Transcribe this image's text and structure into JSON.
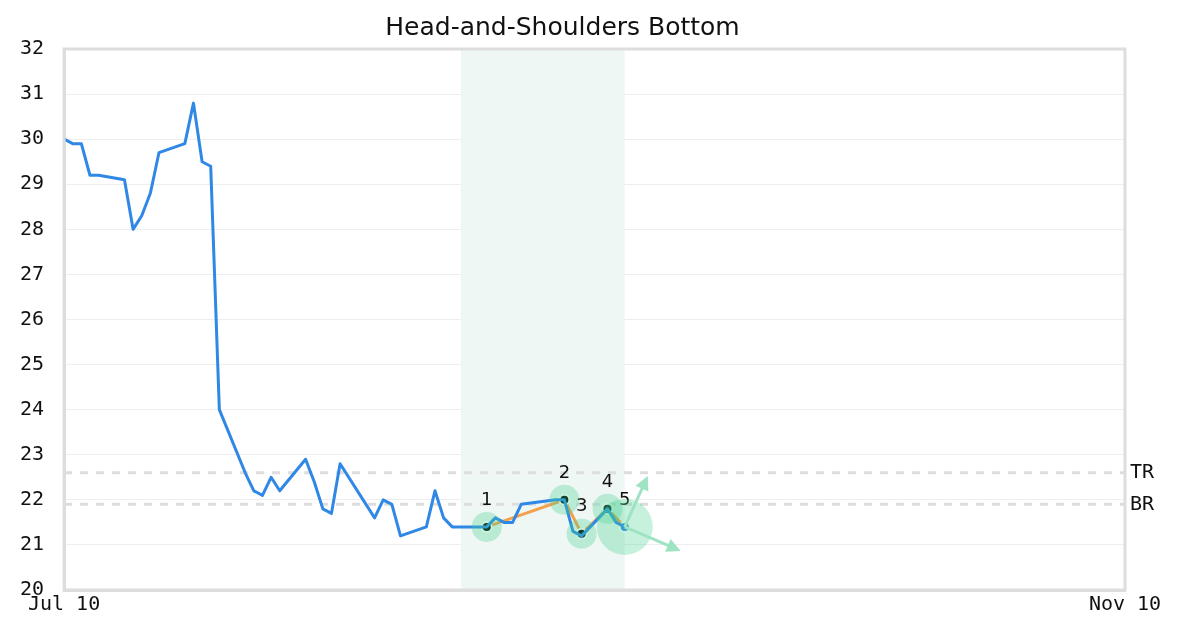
{
  "chart_data": {
    "type": "line",
    "title": "Head-and-Shoulders Bottom",
    "xlim": [
      "--07-10",
      "--11-10"
    ],
    "xticks": [
      {
        "value": "--07-10",
        "label": "Jul 10"
      },
      {
        "value": "--11-10",
        "label": "Nov 10"
      }
    ],
    "ylim": [
      20,
      32
    ],
    "yticks": [
      20,
      21,
      22,
      23,
      24,
      25,
      26,
      27,
      28,
      29,
      30,
      31,
      32
    ],
    "grid": "y",
    "legend": false,
    "series": [
      {
        "color": "#2f88e6",
        "marker": "none",
        "x": [
          "--07-10",
          "--07-11",
          "--07-12",
          "--07-13",
          "--07-14",
          "--07-17",
          "--07-18",
          "--07-19",
          "--07-20",
          "--07-21",
          "--07-24",
          "--07-25",
          "--07-26",
          "--07-27",
          "--07-28",
          "--07-31",
          "--08-01",
          "--08-02",
          "--08-03",
          "--08-04",
          "--08-07",
          "--08-08",
          "--08-09",
          "--08-10",
          "--08-11",
          "--08-14",
          "--08-15",
          "--08-16",
          "--08-17",
          "--08-18",
          "--08-21",
          "--08-22",
          "--08-23",
          "--08-24",
          "--08-25",
          "--08-28",
          "--08-29",
          "--08-30",
          "--08-31",
          "--09-01",
          "--09-05",
          "--09-06",
          "--09-07",
          "--09-08",
          "--09-11",
          "--09-12",
          "--09-13"
        ],
        "values": [
          30.0,
          29.9,
          29.9,
          29.2,
          29.2,
          29.1,
          28.0,
          28.3,
          28.8,
          29.7,
          29.9,
          30.8,
          29.5,
          29.4,
          24.0,
          22.6,
          22.2,
          22.1,
          22.5,
          22.2,
          22.9,
          22.4,
          21.8,
          21.7,
          22.8,
          21.9,
          21.6,
          22.0,
          21.9,
          21.2,
          21.4,
          22.2,
          21.6,
          21.4,
          21.4,
          21.4,
          21.6,
          21.5,
          21.5,
          21.9,
          22.0,
          22.0,
          21.3,
          21.2,
          21.8,
          21.5,
          21.4
        ]
      },
      {
        "color": "#f5a04a",
        "marker": "circle",
        "colors": [
          "#000000",
          "#000000",
          "#000000",
          "#000000",
          "#2f88e6"
        ],
        "x": [
          "--08-28",
          "--09-06",
          "--09-08",
          "--09-11",
          "--09-13"
        ],
        "values": [
          21.4,
          22.0,
          21.25,
          21.8,
          21.4
        ]
      }
    ],
    "ref_lines": [
      {
        "axis": "y",
        "value": 22.6,
        "label": "TR",
        "color": "#dddddd",
        "line_style": "dashed"
      },
      {
        "axis": "y",
        "value": 21.9,
        "label": "BR",
        "color": "#dddddd",
        "line_style": "dashed"
      }
    ],
    "bands": [
      {
        "axis": "x",
        "from": "--08-25",
        "to": "--09-13",
        "color": "#eef7f3"
      }
    ],
    "annotations": [
      {
        "text": "1",
        "x": "--08-28",
        "y": 21.4
      },
      {
        "text": "2",
        "x": "--09-06",
        "y": 22.0
      },
      {
        "text": "3",
        "x": "--09-08",
        "y": 21.25
      },
      {
        "text": "4",
        "x": "--09-11",
        "y": 21.8
      },
      {
        "text": "5",
        "x": "--09-13",
        "y": 21.4
      }
    ]
  }
}
